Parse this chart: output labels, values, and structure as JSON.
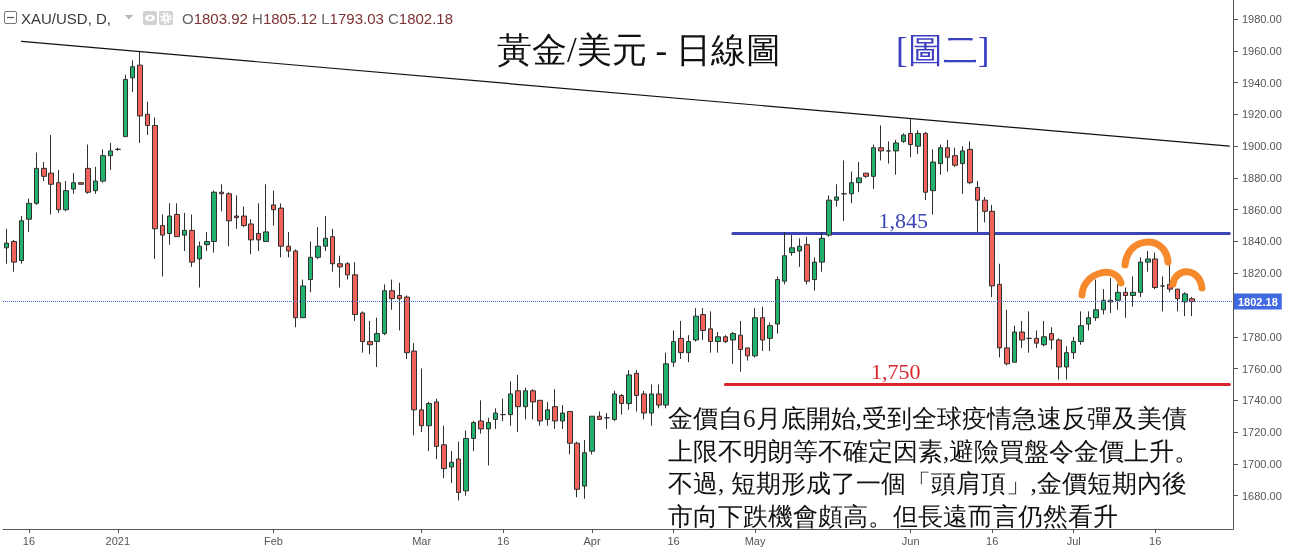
{
  "chart_data": {
    "type": "candlestick",
    "title": "黃金/美元 - 日線圖",
    "subtitle": "[圖二]",
    "annotations": [
      "XAU/USD, D,",
      "O1803.92 H1805.12 L1793.03 C1802.18",
      "金價自6月底開始,受到全球疫情急速反彈及美債上限不明朗等不確定因素,避險買盤令金價上升。不過, 短期形成了一個「頭肩頂」,金價短期內後市向下跌機會頗高。但長遠而言仍然看升",
      {
        "text": "1,845",
        "y": 1845
      },
      {
        "text": "1,750",
        "y": 1750
      }
    ],
    "categories": [
      null,
      null,
      null,
      "16",
      null,
      null,
      null,
      null,
      null,
      null,
      null,
      null,
      null,
      null,
      null,
      "2021",
      null,
      null,
      null,
      null,
      null,
      null,
      null,
      null,
      null,
      null,
      null,
      null,
      null,
      null,
      null,
      null,
      null,
      null,
      null,
      null,
      "Feb",
      null,
      null,
      null,
      null,
      null,
      null,
      null,
      null,
      null,
      null,
      null,
      null,
      null,
      null,
      null,
      null,
      null,
      null,
      null,
      "Mar",
      null,
      null,
      null,
      null,
      null,
      null,
      null,
      null,
      null,
      null,
      "16",
      null,
      null,
      null,
      null,
      null,
      null,
      null,
      null,
      null,
      null,
      null,
      "Apr",
      null,
      null,
      null,
      null,
      null,
      null,
      null,
      null,
      null,
      null,
      "16",
      null,
      null,
      null,
      null,
      null,
      null,
      null,
      null,
      null,
      null,
      "May",
      null,
      null,
      null,
      null,
      null,
      null,
      null,
      null,
      null,
      null,
      null,
      null,
      null,
      null,
      null,
      null,
      null,
      null,
      null,
      null,
      "Jun",
      null,
      null,
      null,
      null,
      null,
      null,
      null,
      null,
      null,
      null,
      "16",
      null,
      null,
      null,
      null,
      null,
      null,
      null,
      null,
      null,
      null,
      "Jul",
      null,
      null,
      null,
      null,
      null,
      null,
      null,
      null,
      null,
      null,
      "16",
      null,
      null,
      null,
      null,
      null,
      null,
      null,
      null,
      null,
      null
    ],
    "ohlc": [
      [
        1836,
        1848,
        1826,
        1839
      ],
      [
        1840,
        1841,
        1821,
        1827
      ],
      [
        1828,
        1856,
        1826,
        1853
      ],
      [
        1854,
        1867,
        1846,
        1864
      ],
      [
        1864,
        1896,
        1863,
        1886
      ],
      [
        1886,
        1890,
        1878,
        1881
      ],
      [
        1883,
        1907,
        1857,
        1876
      ],
      [
        1877,
        1885,
        1858,
        1860
      ],
      [
        1860,
        1878,
        1859,
        1872
      ],
      [
        1873,
        1883,
        1870,
        1877
      ],
      [
        1877,
        1877,
        1876,
        1876
      ],
      [
        1886,
        1901,
        1870,
        1871
      ],
      [
        1872,
        1887,
        1870,
        1878
      ],
      [
        1878,
        1898,
        1877,
        1894
      ],
      [
        1894,
        1902,
        1885,
        1897
      ],
      [
        1898,
        1899,
        1897,
        1898
      ],
      [
        1906,
        1945,
        1906,
        1942
      ],
      [
        1943,
        1954,
        1934,
        1950
      ],
      [
        1951,
        1960,
        1902,
        1919
      ],
      [
        1920,
        1928,
        1907,
        1913
      ],
      [
        1913,
        1918,
        1829,
        1848
      ],
      [
        1850,
        1857,
        1818,
        1844
      ],
      [
        1845,
        1864,
        1838,
        1856
      ],
      [
        1857,
        1864,
        1843,
        1843
      ],
      [
        1844,
        1858,
        1834,
        1847
      ],
      [
        1847,
        1857,
        1824,
        1827
      ],
      [
        1829,
        1840,
        1811,
        1837
      ],
      [
        1838,
        1846,
        1834,
        1840
      ],
      [
        1840,
        1872,
        1833,
        1871
      ],
      [
        1871,
        1876,
        1859,
        1870
      ],
      [
        1870,
        1871,
        1837,
        1853
      ],
      [
        1856,
        1869,
        1848,
        1855
      ],
      [
        1856,
        1862,
        1849,
        1850
      ],
      [
        1851,
        1854,
        1832,
        1841
      ],
      [
        1845,
        1864,
        1834,
        1841
      ],
      [
        1840,
        1876,
        1840,
        1846
      ],
      [
        1863,
        1872,
        1850,
        1860
      ],
      [
        1861,
        1864,
        1830,
        1837
      ],
      [
        1837,
        1846,
        1830,
        1834
      ],
      [
        1834,
        1835,
        1786,
        1792
      ],
      [
        1792,
        1816,
        1792,
        1812
      ],
      [
        1816,
        1840,
        1808,
        1830
      ],
      [
        1830,
        1849,
        1829,
        1837
      ],
      [
        1837,
        1856,
        1834,
        1842
      ],
      [
        1843,
        1848,
        1821,
        1826
      ],
      [
        1826,
        1831,
        1811,
        1824
      ],
      [
        1826,
        1827,
        1816,
        1819
      ],
      [
        1819,
        1827,
        1790,
        1794
      ],
      [
        1795,
        1796,
        1770,
        1777
      ],
      [
        1777,
        1790,
        1769,
        1775
      ],
      [
        1777,
        1792,
        1761,
        1782
      ],
      [
        1782,
        1813,
        1781,
        1809
      ],
      [
        1809,
        1816,
        1797,
        1804
      ],
      [
        1806,
        1814,
        1784,
        1804
      ],
      [
        1805,
        1806,
        1766,
        1770
      ],
      [
        1771,
        1776,
        1718,
        1734
      ],
      [
        1734,
        1760,
        1720,
        1724
      ],
      [
        1724,
        1739,
        1708,
        1738
      ],
      [
        1739,
        1741,
        1703,
        1711
      ],
      [
        1712,
        1724,
        1691,
        1697
      ],
      [
        1698,
        1708,
        1688,
        1701
      ],
      [
        1703,
        1714,
        1677,
        1682
      ],
      [
        1683,
        1721,
        1680,
        1716
      ],
      [
        1716,
        1727,
        1708,
        1726
      ],
      [
        1727,
        1740,
        1719,
        1722
      ],
      [
        1722,
        1729,
        1699,
        1726
      ],
      [
        1728,
        1735,
        1722,
        1732
      ],
      [
        1731,
        1741,
        1727,
        1731
      ],
      [
        1731,
        1752,
        1724,
        1744
      ],
      [
        1746,
        1756,
        1720,
        1736
      ],
      [
        1736,
        1748,
        1728,
        1746
      ],
      [
        1746,
        1747,
        1728,
        1739
      ],
      [
        1740,
        1740,
        1724,
        1727
      ],
      [
        1728,
        1739,
        1724,
        1734
      ],
      [
        1736,
        1747,
        1722,
        1727
      ],
      [
        1727,
        1737,
        1722,
        1732
      ],
      [
        1733,
        1733,
        1706,
        1713
      ],
      [
        1713,
        1714,
        1679,
        1684
      ],
      [
        1686,
        1715,
        1678,
        1707
      ],
      [
        1708,
        1730,
        1706,
        1730
      ],
      [
        1730,
        1733,
        1728,
        1728
      ],
      [
        1729,
        1732,
        1722,
        1729
      ],
      [
        1728,
        1746,
        1727,
        1744
      ],
      [
        1743,
        1744,
        1731,
        1738
      ],
      [
        1738,
        1759,
        1734,
        1756
      ],
      [
        1757,
        1759,
        1733,
        1743
      ],
      [
        1744,
        1746,
        1728,
        1732
      ],
      [
        1732,
        1750,
        1724,
        1744
      ],
      [
        1744,
        1750,
        1735,
        1737
      ],
      [
        1737,
        1770,
        1735,
        1763
      ],
      [
        1764,
        1784,
        1761,
        1777
      ],
      [
        1779,
        1790,
        1766,
        1770
      ],
      [
        1770,
        1781,
        1764,
        1777
      ],
      [
        1778,
        1798,
        1777,
        1793
      ],
      [
        1794,
        1798,
        1778,
        1784
      ],
      [
        1785,
        1796,
        1770,
        1777
      ],
      [
        1777,
        1783,
        1770,
        1780
      ],
      [
        1780,
        1781,
        1776,
        1777
      ],
      [
        1778,
        1783,
        1763,
        1782
      ],
      [
        1781,
        1790,
        1758,
        1772
      ],
      [
        1773,
        1773,
        1765,
        1768
      ],
      [
        1768,
        1798,
        1767,
        1792
      ],
      [
        1792,
        1799,
        1771,
        1778
      ],
      [
        1779,
        1789,
        1771,
        1787
      ],
      [
        1788,
        1818,
        1782,
        1816
      ],
      [
        1815,
        1846,
        1813,
        1831
      ],
      [
        1833,
        1844,
        1831,
        1836
      ],
      [
        1834,
        1842,
        1824,
        1837
      ],
      [
        1838,
        1843,
        1813,
        1815
      ],
      [
        1816,
        1830,
        1809,
        1827
      ],
      [
        1827,
        1846,
        1821,
        1842
      ],
      [
        1844,
        1869,
        1843,
        1866
      ],
      [
        1866,
        1876,
        1862,
        1868
      ],
      [
        1870,
        1891,
        1853,
        1870
      ],
      [
        1870,
        1884,
        1864,
        1877
      ],
      [
        1877,
        1890,
        1871,
        1880
      ],
      [
        1883,
        1883,
        1880,
        1881
      ],
      [
        1881,
        1901,
        1873,
        1899
      ],
      [
        1899,
        1913,
        1891,
        1897
      ],
      [
        1897,
        1903,
        1889,
        1897
      ],
      [
        1897,
        1904,
        1882,
        1902
      ],
      [
        1903,
        1908,
        1902,
        1907
      ],
      [
        1908,
        1917,
        1893,
        1901
      ],
      [
        1900,
        1910,
        1895,
        1908
      ],
      [
        1908,
        1909,
        1866,
        1871
      ],
      [
        1872,
        1898,
        1857,
        1890
      ],
      [
        1889,
        1901,
        1882,
        1899
      ],
      [
        1899,
        1904,
        1884,
        1893
      ],
      [
        1894,
        1899,
        1887,
        1888
      ],
      [
        1889,
        1900,
        1870,
        1897
      ],
      [
        1898,
        1903,
        1876,
        1877
      ],
      [
        1874,
        1878,
        1846,
        1866
      ],
      [
        1866,
        1868,
        1852,
        1859
      ],
      [
        1859,
        1863,
        1805,
        1812
      ],
      [
        1813,
        1826,
        1767,
        1773
      ],
      [
        1773,
        1797,
        1762,
        1763
      ],
      [
        1764,
        1787,
        1764,
        1783
      ],
      [
        1783,
        1790,
        1773,
        1778
      ],
      [
        1779,
        1796,
        1770,
        1779
      ],
      [
        1779,
        1784,
        1773,
        1776
      ],
      [
        1775,
        1790,
        1774,
        1780
      ],
      [
        1782,
        1786,
        1772,
        1778
      ],
      [
        1778,
        1779,
        1753,
        1761
      ],
      [
        1761,
        1774,
        1753,
        1770
      ],
      [
        1770,
        1780,
        1766,
        1777
      ],
      [
        1777,
        1796,
        1775,
        1787
      ],
      [
        1788,
        1796,
        1784,
        1792
      ],
      [
        1792,
        1816,
        1790,
        1797
      ],
      [
        1797,
        1810,
        1794,
        1803
      ],
      [
        1803,
        1817,
        1795,
        1802
      ],
      [
        1803,
        1813,
        1797,
        1808
      ],
      [
        1808,
        1811,
        1792,
        1806
      ],
      [
        1806,
        1818,
        1799,
        1808
      ],
      [
        1808,
        1830,
        1805,
        1827
      ],
      [
        1827,
        1834,
        1821,
        1829
      ],
      [
        1829,
        1833,
        1810,
        1811
      ],
      [
        1812,
        1818,
        1796,
        1812
      ],
      [
        1813,
        1826,
        1808,
        1810
      ],
      [
        1810,
        1810,
        1796,
        1804
      ],
      [
        1802,
        1808,
        1793,
        1807
      ],
      [
        1803.92,
        1805.12,
        1793.03,
        1802.18
      ],
      null,
      null,
      null,
      null,
      null
    ],
    "colors": [
      "#22b26d",
      "#f1625a",
      "#22b26d",
      "#22b26d",
      "#22b26d",
      "#f1625a",
      "#f1625a",
      "#f1625a",
      "#22b26d",
      "#22b26d",
      "#f1625a",
      "#f1625a",
      "#22b26d",
      "#22b26d",
      "#22b26d",
      "#2f2f2f",
      "#22b26d",
      "#22b26d",
      "#f1625a",
      "#f1625a",
      "#f1625a",
      "#f1625a",
      "#22b26d",
      "#f1625a",
      "#22b26d",
      "#f1625a",
      "#22b26d",
      "#22b26d",
      "#22b26d",
      "#f1625a",
      "#f1625a",
      "#f1625a",
      "#f1625a",
      "#f1625a",
      "#f1625a",
      "#22b26d",
      "#f1625a",
      "#f1625a",
      "#f1625a",
      "#f1625a",
      "#22b26d",
      "#22b26d",
      "#22b26d",
      "#22b26d",
      "#f1625a",
      "#f1625a",
      "#f1625a",
      "#f1625a",
      "#f1625a",
      "#f1625a",
      "#22b26d",
      "#22b26d",
      "#f1625a",
      "#f1625a",
      "#f1625a",
      "#f1625a",
      "#f1625a",
      "#22b26d",
      "#f1625a",
      "#f1625a",
      "#22b26d",
      "#f1625a",
      "#22b26d",
      "#22b26d",
      "#f1625a",
      "#22b26d",
      "#22b26d",
      "#2f2f2f",
      "#22b26d",
      "#f1625a",
      "#22b26d",
      "#f1625a",
      "#f1625a",
      "#22b26d",
      "#f1625a",
      "#22b26d",
      "#f1625a",
      "#f1625a",
      "#22b26d",
      "#22b26d",
      "#f1625a",
      "#2f2f2f",
      "#22b26d",
      "#f1625a",
      "#22b26d",
      "#f1625a",
      "#f1625a",
      "#22b26d",
      "#f1625a",
      "#22b26d",
      "#22b26d",
      "#f1625a",
      "#22b26d",
      "#22b26d",
      "#f1625a",
      "#f1625a",
      "#22b26d",
      "#f1625a",
      "#22b26d",
      "#f1625a",
      "#f1625a",
      "#22b26d",
      "#f1625a",
      "#22b26d",
      "#22b26d",
      "#22b26d",
      "#22b26d",
      "#22b26d",
      "#f1625a",
      "#22b26d",
      "#22b26d",
      "#22b26d",
      "#22b26d",
      "#2f2f2f",
      "#22b26d",
      "#22b26d",
      "#f1625a",
      "#22b26d",
      "#f1625a",
      "#2f2f2f",
      "#22b26d",
      "#22b26d",
      "#f1625a",
      "#22b26d",
      "#f1625a",
      "#22b26d",
      "#22b26d",
      "#f1625a",
      "#f1625a",
      "#22b26d",
      "#f1625a",
      "#f1625a",
      "#f1625a",
      "#f1625a",
      "#f1625a",
      "#f1625a",
      "#22b26d",
      "#f1625a",
      "#2f2f2f",
      "#f1625a",
      "#22b26d",
      "#f1625a",
      "#f1625a",
      "#22b26d",
      "#22b26d",
      "#22b26d",
      "#22b26d",
      "#22b26d",
      "#22b26d",
      "#f1625a",
      "#22b26d",
      "#f1625a",
      "#22b26d",
      "#22b26d",
      "#22b26d",
      "#f1625a",
      "#2f2f2f",
      "#f1625a",
      "#f1625a",
      "#22b26d",
      "#f1625a",
      null,
      null,
      null,
      null,
      null
    ],
    "series": [
      {
        "type": "line",
        "color": "#111111",
        "values": [
          null,
          null,
          1966,
          null,
          null,
          null,
          null,
          null,
          null,
          null,
          null,
          null,
          null,
          null,
          null,
          null,
          null,
          null,
          null,
          null,
          null,
          null,
          null,
          null,
          null,
          null,
          null,
          null,
          null,
          null,
          null,
          null,
          null,
          null,
          null,
          null,
          null,
          null,
          null,
          null,
          null,
          null,
          null,
          null,
          null,
          null,
          null,
          null,
          null,
          null,
          null,
          null,
          null,
          null,
          null,
          null,
          null,
          null,
          null,
          null,
          null,
          null,
          null,
          null,
          null,
          null,
          null,
          null,
          null,
          null,
          null,
          null,
          null,
          null,
          null,
          null,
          null,
          null,
          null,
          null,
          null,
          null,
          null,
          null,
          null,
          null,
          null,
          null,
          null,
          null,
          null,
          null,
          null,
          null,
          null,
          null,
          null,
          null,
          null,
          null,
          null,
          null,
          null,
          null,
          null,
          null,
          null,
          null,
          null,
          null,
          null,
          null,
          null,
          null,
          null,
          null,
          null,
          null,
          null,
          null,
          null,
          null,
          null,
          null,
          null,
          null,
          null,
          null,
          null,
          null,
          null,
          null,
          null,
          null,
          null,
          null,
          null,
          null,
          null,
          null,
          null,
          null,
          null,
          null,
          null,
          null,
          null,
          null,
          null,
          null,
          null,
          null,
          null,
          null,
          null,
          null,
          null,
          null,
          null,
          null,
          null,
          null,
          null,
          null,
          null,
          1900
        ]
      },
      {
        "type": "line",
        "color": "#3b45b3",
        "values": [
          null,
          null,
          null,
          null,
          null,
          null,
          null,
          null,
          null,
          null,
          null,
          null,
          null,
          null,
          null,
          null,
          null,
          null,
          null,
          null,
          null,
          null,
          null,
          null,
          null,
          null,
          null,
          null,
          null,
          null,
          null,
          null,
          null,
          null,
          null,
          null,
          null,
          null,
          null,
          null,
          null,
          null,
          null,
          null,
          null,
          null,
          null,
          null,
          null,
          null,
          null,
          null,
          null,
          null,
          null,
          null,
          null,
          null,
          null,
          null,
          null,
          null,
          null,
          null,
          null,
          null,
          null,
          null,
          null,
          null,
          null,
          null,
          null,
          null,
          null,
          null,
          null,
          null,
          null,
          null,
          null,
          null,
          null,
          null,
          null,
          null,
          null,
          null,
          null,
          null,
          null,
          null,
          null,
          null,
          null,
          null,
          null,
          null,
          1845,
          1845,
          1845,
          1845,
          1845,
          1845,
          1845,
          1845,
          1845,
          1845,
          1845,
          1845,
          1845,
          1845,
          1845,
          1845,
          1845,
          1845,
          1845,
          1845,
          1845,
          1845,
          1845,
          1845,
          1845,
          1845,
          1845,
          1845,
          1845,
          1845,
          1845,
          1845,
          1845,
          1845,
          1845,
          1845,
          1845,
          1845,
          1845,
          1845,
          1845,
          1845,
          1845,
          1845,
          1845,
          1845,
          1845,
          1845,
          1845,
          1845,
          1845,
          1845,
          1845,
          1845,
          1845,
          1845,
          1845,
          1845,
          1845,
          1845,
          1845,
          1845,
          1845,
          1845,
          1845,
          1845,
          1845,
          1845
        ]
      },
      {
        "type": "line",
        "color": "#d9252c",
        "values": [
          null,
          null,
          null,
          null,
          null,
          null,
          null,
          null,
          null,
          null,
          null,
          null,
          null,
          null,
          null,
          null,
          null,
          null,
          null,
          null,
          null,
          null,
          null,
          null,
          null,
          null,
          null,
          null,
          null,
          null,
          null,
          null,
          null,
          null,
          null,
          null,
          null,
          null,
          null,
          null,
          null,
          null,
          null,
          null,
          null,
          null,
          null,
          null,
          null,
          null,
          null,
          null,
          null,
          null,
          null,
          null,
          null,
          null,
          null,
          null,
          null,
          null,
          null,
          null,
          null,
          null,
          null,
          null,
          null,
          null,
          null,
          null,
          null,
          null,
          null,
          null,
          null,
          null,
          null,
          null,
          null,
          null,
          null,
          null,
          null,
          null,
          null,
          null,
          null,
          null,
          null,
          null,
          null,
          null,
          null,
          null,
          null,
          1750,
          1750,
          1750,
          1750,
          1750,
          1750,
          1750,
          1750,
          1750,
          1750,
          1750,
          1750,
          1750,
          1750,
          1750,
          1750,
          1750,
          1750,
          1750,
          1750,
          1750,
          1750,
          1750,
          1750,
          1750,
          1750,
          1750,
          1750,
          1750,
          1750,
          1750,
          1750,
          1750,
          1750,
          1750,
          1750,
          1750,
          1750,
          1750,
          1750,
          1750,
          1750,
          1750,
          1750,
          1750,
          1750,
          1750,
          1750,
          1750,
          1750,
          1750,
          1750,
          1750,
          1750,
          1750,
          1750,
          1750,
          1750,
          1750,
          1750,
          1750,
          1750,
          1750,
          1750,
          1750,
          1750,
          1750,
          1750,
          1750
        ]
      }
    ],
    "ylim": [
      1659,
      1992
    ],
    "yticks": [
      {
        "value": 1680,
        "label": "1680.00"
      },
      {
        "value": 1700,
        "label": "1700.00"
      },
      {
        "value": 1720,
        "label": "1720.00"
      },
      {
        "value": 1740,
        "label": "1740.00"
      },
      {
        "value": 1760,
        "label": "1760.00"
      },
      {
        "value": 1780,
        "label": "1780.00"
      },
      {
        "value": 1820,
        "label": "1820.00"
      },
      {
        "value": 1840,
        "label": "1840.00"
      },
      {
        "value": 1860,
        "label": "1860.00"
      },
      {
        "value": 1880,
        "label": "1880.00"
      },
      {
        "value": 1900,
        "label": "1900.00"
      },
      {
        "value": 1920,
        "label": "1920.00"
      },
      {
        "value": 1940,
        "label": "1940.00"
      },
      {
        "value": 1960,
        "label": "1960.00"
      },
      {
        "value": 1980,
        "label": "1980.00"
      }
    ],
    "ref_lines": [
      {
        "axis": "y",
        "value": 1802.18,
        "label": "1802.18",
        "color": "#4169e1",
        "line_style": "dotted"
      }
    ]
  }
}
